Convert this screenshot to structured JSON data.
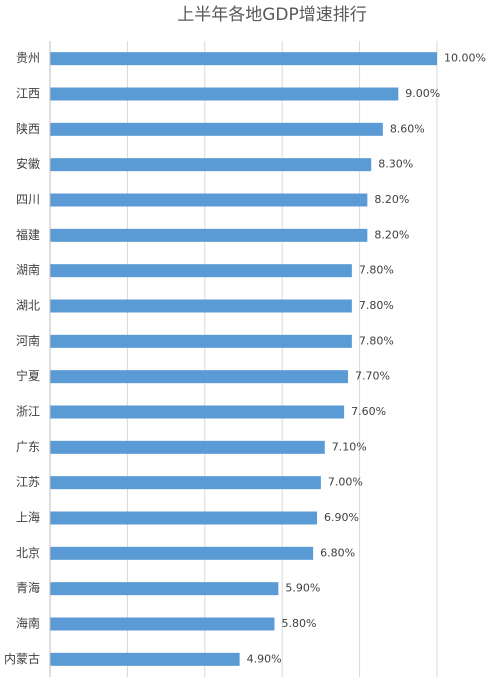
{
  "chart_data": {
    "type": "bar",
    "orientation": "horizontal",
    "title": "上半年各地GDP增速排行",
    "categories": [
      "贵州",
      "江西",
      "陕西",
      "安徽",
      "四川",
      "福建",
      "湖南",
      "湖北",
      "河南",
      "宁夏",
      "浙江",
      "广东",
      "江苏",
      "上海",
      "北京",
      "青海",
      "海南",
      "内蒙古"
    ],
    "values": [
      10,
      9,
      8.6,
      8.3,
      8.2,
      8.2,
      7.8,
      7.8,
      7.8,
      7.7,
      7.6,
      7.1,
      7.0,
      6.9,
      6.8,
      5.9,
      5.8,
      4.9
    ],
    "value_labels": [
      "10.00%",
      "9.00%",
      "8.60%",
      "8.30%",
      "8.20%",
      "8.20%",
      "7.80%",
      "7.80%",
      "7.80%",
      "7.70%",
      "7.60%",
      "7.10%",
      "7.00%",
      "6.90%",
      "6.80%",
      "5.90%",
      "5.80%",
      "4.90%"
    ],
    "color": "#5b9bd5",
    "xlim": [
      0,
      10
    ],
    "grid_positions": [
      0,
      2,
      4,
      6,
      8,
      10
    ],
    "grid": true
  }
}
